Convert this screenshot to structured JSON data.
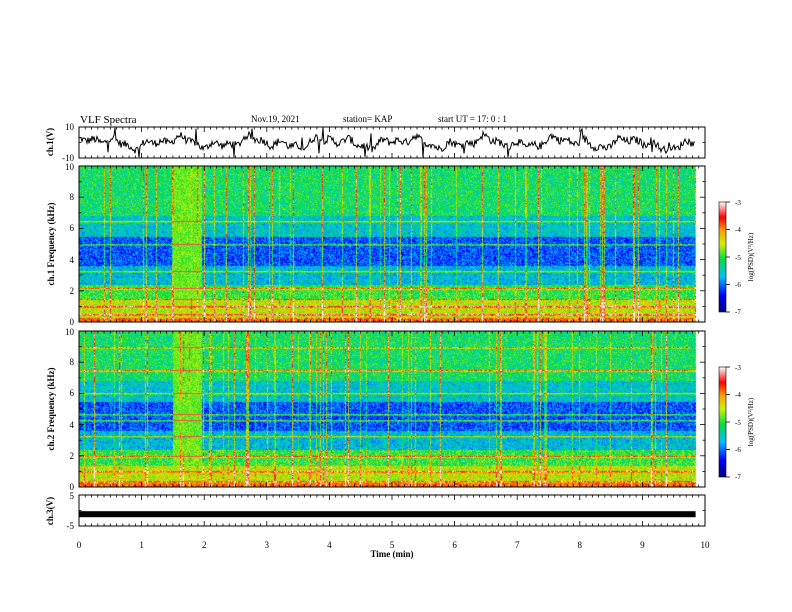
{
  "header": {
    "title": "VLF Spectra",
    "date": "Nov.19, 2021",
    "station": "station= KAP",
    "start": "start  UT =   17: 0  : 1"
  },
  "chart_data": [
    {
      "type": "line",
      "name": "waveform",
      "ylabel": "ch.1(V)",
      "ylim": [
        -10,
        10
      ],
      "yticks": [
        "10",
        "-10"
      ],
      "xlim": [
        0,
        10
      ]
    },
    {
      "type": "heatmap",
      "name": "spectrogram-ch1",
      "ylabel": "ch.1 Frequency (kHz)",
      "ylim": [
        0,
        10
      ],
      "yticks": [
        "0",
        "2",
        "4",
        "6",
        "8",
        "10"
      ],
      "xlim": [
        0,
        10
      ],
      "data_end_min": 9.85,
      "burst_min": [
        1.5,
        1.95
      ],
      "strong_lines_khz": [
        6.5,
        5.0,
        3.3,
        2.2,
        1.5,
        1.0,
        0.5
      ],
      "colorbar": {
        "label": "log(PSD)(V²/Hz)",
        "range": [
          -7,
          -3
        ],
        "ticks": [
          "-3",
          "-4",
          "-5",
          "-6",
          "-7"
        ]
      }
    },
    {
      "type": "heatmap",
      "name": "spectrogram-ch2",
      "ylabel": "ch.2 Frequency (kHz)",
      "ylim": [
        0,
        10
      ],
      "yticks": [
        "0",
        "2",
        "4",
        "6",
        "8",
        "10"
      ],
      "xlim": [
        0,
        10
      ],
      "data_end_min": 9.85,
      "burst_min": [
        1.5,
        1.95
      ],
      "strong_lines_khz": [
        9.0,
        7.5,
        6.0,
        4.7,
        4.3,
        3.3,
        2.0,
        1.0,
        0.4
      ],
      "colorbar": {
        "label": "log(PSD)(V²/Hz)",
        "range": [
          -7,
          -3
        ],
        "ticks": [
          "-3",
          "-4",
          "-5",
          "-6",
          "-7"
        ]
      }
    },
    {
      "type": "line",
      "name": "ch3",
      "ylabel": "ch.3(V)",
      "ylim": [
        -5,
        5
      ],
      "yticks": [
        "5",
        "-5"
      ],
      "xlim": [
        0,
        10
      ],
      "value": -1.2
    }
  ],
  "xaxis": {
    "label": "Time  (min)",
    "ticks": [
      "0",
      "1",
      "2",
      "3",
      "4",
      "5",
      "6",
      "7",
      "8",
      "9",
      "10"
    ]
  }
}
